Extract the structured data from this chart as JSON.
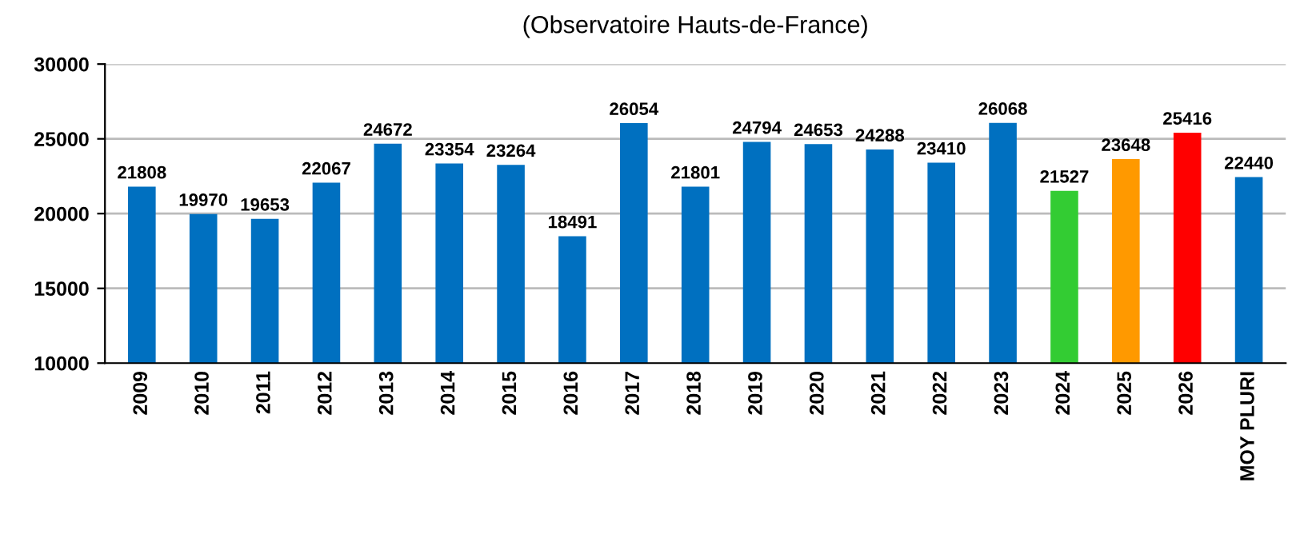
{
  "chart_data": {
    "type": "bar",
    "title": "(Observatoire Hauts-de-France)",
    "categories": [
      "2009",
      "2010",
      "2011",
      "2012",
      "2013",
      "2014",
      "2015",
      "2016",
      "2017",
      "2018",
      "2019",
      "2020",
      "2021",
      "2022",
      "2023",
      "2024",
      "2025",
      "2026",
      "MOY PLURI"
    ],
    "values": [
      21808,
      19970,
      19653,
      22067,
      24672,
      23354,
      23264,
      18491,
      26054,
      21801,
      24794,
      24653,
      24288,
      23410,
      26068,
      21527,
      23648,
      25416,
      22440
    ],
    "colors": [
      "#0070c0",
      "#0070c0",
      "#0070c0",
      "#0070c0",
      "#0070c0",
      "#0070c0",
      "#0070c0",
      "#0070c0",
      "#0070c0",
      "#0070c0",
      "#0070c0",
      "#0070c0",
      "#0070c0",
      "#0070c0",
      "#0070c0",
      "#33cc33",
      "#ff9900",
      "#ff0000",
      "#0070c0"
    ],
    "ylim": [
      10000,
      30000
    ],
    "yticks": [
      10000,
      15000,
      20000,
      25000,
      30000
    ],
    "grid": "y",
    "data_labels": true
  }
}
